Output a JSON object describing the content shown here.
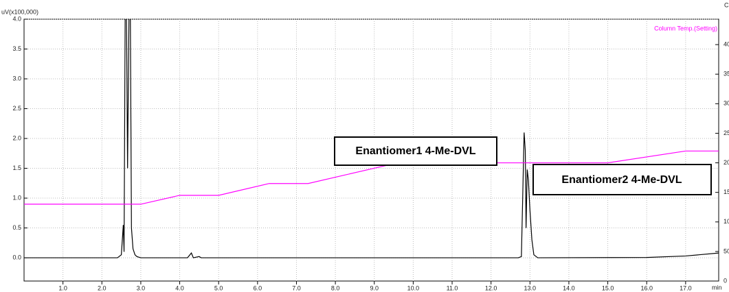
{
  "chart_data": {
    "type": "line",
    "y_label": "uV(x100,000)",
    "x_label": "min",
    "y2_label": "C",
    "xlim": [
      0,
      17.85
    ],
    "ylim": [
      -0.39,
      4.0
    ],
    "y2lim": [
      0,
      443
    ],
    "xticks": [
      {
        "value": 1,
        "label": "1.0"
      },
      {
        "value": 2,
        "label": "2.0"
      },
      {
        "value": 3,
        "label": "3.0"
      },
      {
        "value": 4,
        "label": "4.0"
      },
      {
        "value": 5,
        "label": "5.0"
      },
      {
        "value": 6,
        "label": "6.0"
      },
      {
        "value": 7,
        "label": "7.0"
      },
      {
        "value": 8,
        "label": "8.0"
      },
      {
        "value": 9,
        "label": "9.0"
      },
      {
        "value": 10,
        "label": "10.0"
      },
      {
        "value": 11,
        "label": "11.0"
      },
      {
        "value": 12,
        "label": "12.0"
      },
      {
        "value": 13,
        "label": "13.0"
      },
      {
        "value": 14,
        "label": "14.0"
      },
      {
        "value": 15,
        "label": "15.0"
      },
      {
        "value": 16,
        "label": "16.0"
      },
      {
        "value": 17,
        "label": "17.0"
      }
    ],
    "yticks": [
      {
        "value": 0,
        "label": "0.0"
      },
      {
        "value": 0.5,
        "label": "0.5"
      },
      {
        "value": 1,
        "label": "1.0"
      },
      {
        "value": 1.5,
        "label": "1.5"
      },
      {
        "value": 2,
        "label": "2.0"
      },
      {
        "value": 2.5,
        "label": "2.5"
      },
      {
        "value": 3,
        "label": "3.0"
      },
      {
        "value": 3.5,
        "label": "3.5"
      },
      {
        "value": 4,
        "label": "4.0"
      }
    ],
    "y2ticks": [
      0,
      50,
      100,
      150,
      200,
      250,
      300,
      350,
      400
    ],
    "grid": true,
    "series": [
      {
        "color": "#000000",
        "x": [
          0,
          2.4,
          2.5,
          2.55,
          2.57,
          2.6,
          2.63,
          2.66,
          2.7,
          2.73,
          2.76,
          2.8,
          2.85,
          2.9,
          3.0,
          3.1,
          4.2,
          4.3,
          4.35,
          4.5,
          4.55,
          12.7,
          12.78,
          12.82,
          12.85,
          12.88,
          12.9,
          12.93,
          12.96,
          13.0,
          13.05,
          13.1,
          13.2,
          16.0,
          17.0,
          17.85
        ],
        "values": [
          0,
          0,
          0.05,
          0.55,
          0.1,
          4.3,
          4.3,
          1.5,
          4.3,
          4.3,
          0.5,
          0.15,
          0.05,
          0.02,
          0,
          0,
          0,
          0.08,
          0,
          0.02,
          0,
          0,
          0.02,
          1.2,
          2.1,
          1.8,
          0.5,
          1.48,
          1.3,
          0.8,
          0.3,
          0.05,
          0,
          0.005,
          0.03,
          0.08
        ]
      },
      {
        "name": "Column Temp.(Setting)",
        "color": "#ff00ff",
        "axis": "y2",
        "x": [
          0,
          3.0,
          4.0,
          5.0,
          6.3,
          7.3,
          9.6,
          15.0,
          17.0,
          17.85
        ],
        "values": [
          130,
          130,
          145,
          145,
          165,
          165,
          200,
          200,
          220,
          220
        ]
      }
    ],
    "annotations": [
      "Enantiomer1 4-Me-DVL",
      "Enantiomer2 4-Me-DVL"
    ]
  }
}
